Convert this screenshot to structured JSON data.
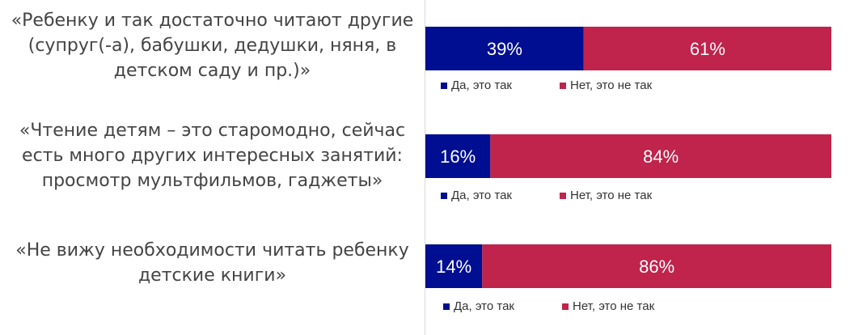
{
  "chart_data": {
    "type": "bar",
    "orientation": "horizontal",
    "stacked": true,
    "value_unit": "%",
    "xlim": [
      0,
      100
    ],
    "colors": {
      "yes": "#000f91",
      "no": "#c0234b",
      "axis": "#d9d9d9",
      "text": "#444444"
    },
    "categories": [
      "«Ребенку и так достаточно читают другие\n(супруг(-а), бабушки, дедушки, няня, в\nдетском саду и пр.)»",
      "«Чтение детям – это старомодно, сейчас\nесть много других интересных занятий:\nпросмотр мультфильмов, гаджеты»",
      "«Не вижу необходимости читать ребенку\nдетские книги»"
    ],
    "series": [
      {
        "name": "Да, это так",
        "values": [
          39,
          16,
          14
        ],
        "labels": [
          "39%",
          "16%",
          "14%"
        ]
      },
      {
        "name": "Нет, это не так",
        "values": [
          61,
          84,
          86
        ],
        "labels": [
          "61%",
          "84%",
          "86%"
        ]
      }
    ]
  }
}
